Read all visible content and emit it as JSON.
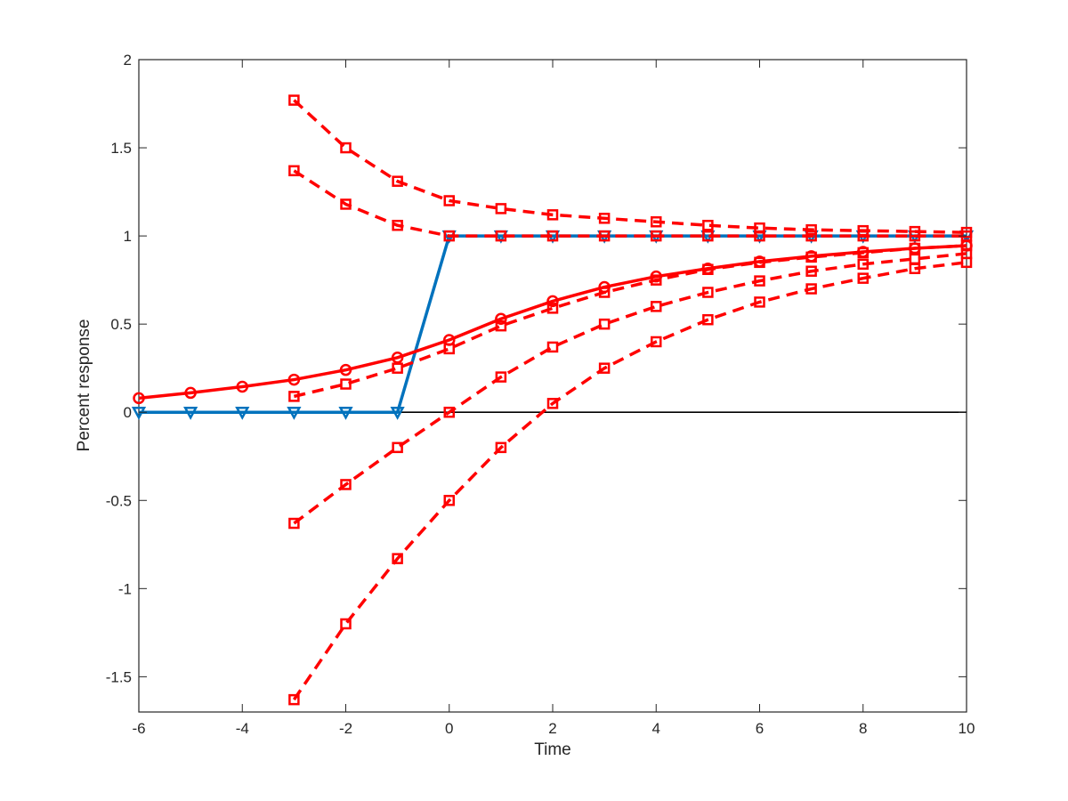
{
  "chart_data": {
    "type": "line",
    "title": "",
    "xlabel": "Time",
    "ylabel": "Percent response",
    "xlim": [
      -6,
      10
    ],
    "ylim": [
      -1.7,
      2
    ],
    "xticks": [
      -6,
      -4,
      -2,
      0,
      2,
      4,
      6,
      8,
      10
    ],
    "xtick_labels": [
      "-6",
      "-4",
      "-2",
      "0",
      "2",
      "4",
      "6",
      "8",
      "10"
    ],
    "yticks": [
      -1.5,
      -1,
      -0.5,
      0,
      0.5,
      1,
      1.5,
      2
    ],
    "ytick_labels": [
      "-1.5",
      "-1",
      "-0.5",
      "0",
      "0.5",
      "1",
      "1.5",
      "2"
    ],
    "zero_line": true,
    "grid": false,
    "legend": "none",
    "series": [
      {
        "color": "#0072bd",
        "style": "solid",
        "marker": "triangle-down",
        "x": [
          -6,
          -5,
          -4,
          -3,
          -2,
          -1,
          0,
          1,
          2,
          3,
          4,
          5,
          6,
          7,
          8,
          9,
          10
        ],
        "y": [
          0,
          0,
          0,
          0,
          0,
          0,
          1,
          1,
          1,
          1,
          1,
          1,
          1,
          1,
          1,
          1,
          1
        ]
      },
      {
        "color": "#ff0000",
        "style": "solid",
        "marker": "circle",
        "x": [
          -6,
          -5,
          -4,
          -3,
          -2,
          -1,
          0,
          1,
          2,
          3,
          4,
          5,
          6,
          7,
          8,
          9,
          10
        ],
        "y": [
          0.08,
          0.11,
          0.145,
          0.185,
          0.24,
          0.31,
          0.41,
          0.53,
          0.63,
          0.71,
          0.77,
          0.815,
          0.855,
          0.885,
          0.91,
          0.93,
          0.945
        ]
      },
      {
        "color": "#ff0000",
        "style": "dashed",
        "marker": "square",
        "x": [
          -3,
          -2,
          -1,
          0,
          1,
          2,
          3,
          4,
          5,
          6,
          7,
          8,
          9,
          10
        ],
        "y": [
          0.09,
          0.16,
          0.25,
          0.36,
          0.49,
          0.59,
          0.68,
          0.75,
          0.81,
          0.85,
          0.88,
          0.905,
          0.93,
          0.945
        ]
      },
      {
        "color": "#ff0000",
        "style": "dashed",
        "marker": "square",
        "x": [
          -3,
          -2,
          -1,
          0,
          1,
          2,
          3,
          4,
          5,
          6,
          7,
          8,
          9,
          10
        ],
        "y": [
          1.77,
          1.5,
          1.31,
          1.2,
          1.155,
          1.12,
          1.1,
          1.08,
          1.06,
          1.045,
          1.035,
          1.03,
          1.025,
          1.02
        ]
      },
      {
        "color": "#ff0000",
        "style": "dashed",
        "marker": "square",
        "x": [
          -3,
          -2,
          -1,
          0,
          1,
          2,
          3,
          4,
          5,
          6,
          7,
          8,
          9,
          10
        ],
        "y": [
          1.37,
          1.18,
          1.06,
          1.0,
          1.0,
          1.0,
          1.0,
          1.0,
          1.0,
          1.0,
          1.0,
          1.0,
          1.0,
          1.0
        ]
      },
      {
        "color": "#ff0000",
        "style": "dashed",
        "marker": "square",
        "x": [
          -3,
          -2,
          -1,
          0,
          1,
          2,
          3,
          4,
          5,
          6,
          7,
          8,
          9,
          10
        ],
        "y": [
          -0.63,
          -0.41,
          -0.2,
          0.0,
          0.2,
          0.37,
          0.5,
          0.6,
          0.68,
          0.745,
          0.8,
          0.84,
          0.87,
          0.9
        ]
      },
      {
        "color": "#ff0000",
        "style": "dashed",
        "marker": "square",
        "x": [
          -3,
          -2,
          -1,
          0,
          1,
          2,
          3,
          4,
          5,
          6,
          7,
          8,
          9,
          10
        ],
        "y": [
          -1.63,
          -1.2,
          -0.83,
          -0.5,
          -0.2,
          0.05,
          0.25,
          0.4,
          0.525,
          0.625,
          0.7,
          0.76,
          0.815,
          0.85
        ]
      }
    ]
  }
}
